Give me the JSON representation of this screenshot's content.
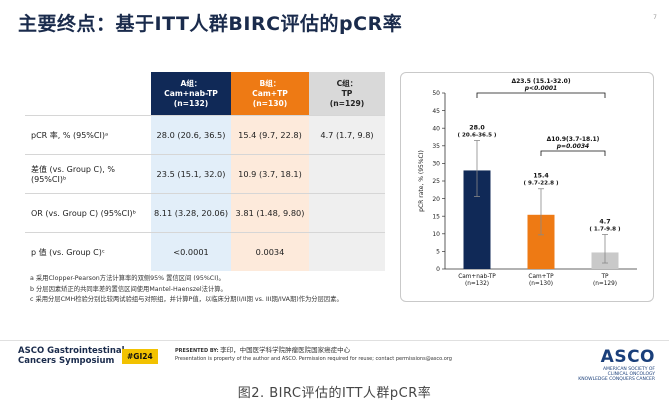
{
  "slide": {
    "title": "主要终点：基于ITT人群BIRC评估的pCR率",
    "page_number": "7"
  },
  "table": {
    "headers": {
      "a": [
        "A组：",
        "Cam+nab-TP",
        "(n=132)"
      ],
      "b": [
        "B组：",
        "Cam+TP",
        "(n=130)"
      ],
      "c": [
        "C组：",
        "TP",
        "(n=129)"
      ]
    },
    "rows": [
      {
        "label": "pCR 率, % (95%CI)ᵃ",
        "a": "28.0 (20.6, 36.5)",
        "b": "15.4 (9.7, 22.8)",
        "c": "4.7 (1.7, 9.8)"
      },
      {
        "label": "差值 (vs. Group C), % (95%CI)ᵇ",
        "a": "23.5 (15.1, 32.0)",
        "b": "10.9 (3.7, 18.1)",
        "c": ""
      },
      {
        "label": "OR (vs. Group C) (95%CI)ᵇ",
        "a": "8.11 (3.28, 20.06)",
        "b": "3.81 (1.48, 9.80)",
        "c": ""
      },
      {
        "label": "p 值 (vs. Group C)ᶜ",
        "a": "<0.0001",
        "b": "0.0034",
        "c": ""
      }
    ]
  },
  "footnotes": [
    "a 采用Clopper-Pearson方法计算率的双侧95% 置信区间 (95%CI)。",
    "b 分层因素矫正的共同率差的置信区间使用Mantel-Haenszel法计算。",
    "c 采用分层CMH检验分别比较两试验组与对照组，并计算P值，以临床分期(I/II期 vs. III期/IVA期)作为分层因素。"
  ],
  "chart_data": {
    "type": "bar",
    "ylabel": "pCR rate, % (95%CI)",
    "ylim": [
      0,
      50
    ],
    "yticks": [
      0,
      5,
      10,
      15,
      20,
      25,
      30,
      35,
      40,
      45,
      50
    ],
    "categories": [
      "Cam+nab-TP\n(n=132)",
      "Cam+TP\n(n=130)",
      "TP\n(n=129)"
    ],
    "values": [
      28.0,
      15.4,
      4.7
    ],
    "ci_low": [
      20.6,
      9.7,
      1.7
    ],
    "ci_high": [
      36.5,
      22.8,
      9.8
    ],
    "bar_colors": [
      "#102957",
      "#ee7a14",
      "#c9c9c9"
    ],
    "value_labels": [
      "28.0",
      "15.4",
      "4.7"
    ],
    "ci_labels": [
      "( 20.6-36.5 )",
      "( 9.7-22.8 )",
      "( 1.7-9.8 )"
    ],
    "comparisons": [
      {
        "from": 0,
        "to": 2,
        "line1": "Δ23.5 (15.1-32.0)",
        "line2": "p<0.0001"
      },
      {
        "from": 1,
        "to": 2,
        "line1": "Δ10.9(3.7-18.1)",
        "line2": "p=0.0034"
      }
    ]
  },
  "footer": {
    "asco_line1": "ASCO Gastrointestinal",
    "asco_line2": "Cancers Symposium",
    "hashtag": "#GI24",
    "presented_by": "PRESENTED BY:",
    "presenter": "李印，中国医学科学院肿瘤医院国家癌症中心",
    "notice": "Presentation is property of the author and ASCO. Permission required for reuse; contact permissions@asco.org",
    "asco_logo": "ASCO",
    "asco_sub1": "AMERICAN SOCIETY OF",
    "asco_sub2": "CLINICAL ONCOLOGY",
    "asco_sub3": "KNOWLEDGE CONQUERS CANCER"
  },
  "caption": "图2. BIRC评估的ITT人群pCR率"
}
